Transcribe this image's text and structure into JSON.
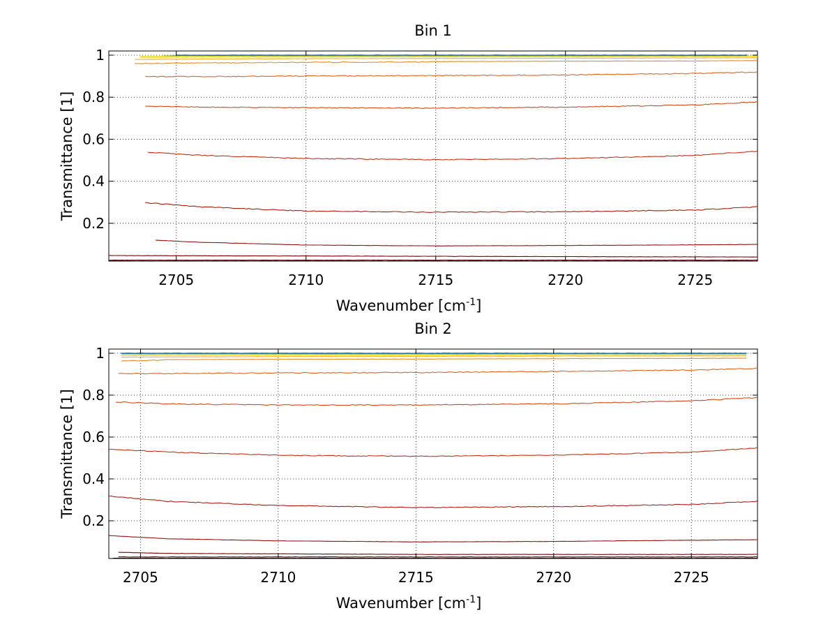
{
  "chart_data": [
    {
      "type": "line",
      "title": "Bin 1",
      "xlabel": "Wavenumber [cm",
      "xlabel_sup": "-1",
      "xlabel_end": "]",
      "ylabel": "Transmittance [1]",
      "xlim": [
        2702.4,
        2727.4
      ],
      "ylim": [
        0.02,
        1.02
      ],
      "xticks": [
        2705,
        2710,
        2715,
        2720,
        2725
      ],
      "xtick_labels": [
        "2705",
        "2710",
        "2715",
        "2720",
        "2725"
      ],
      "yticks": [
        0.2,
        0.4,
        0.6,
        0.8,
        1
      ],
      "ytick_labels": [
        "0.2",
        "0.4",
        "0.6",
        "0.8",
        "1"
      ],
      "grid": "dotted",
      "series": [
        {
          "color": "#000000",
          "x": [
            2702.4,
            2727.4
          ],
          "y": [
            0.021,
            0.021
          ]
        },
        {
          "color": "#5a0000",
          "x": [
            2702.4,
            2727.4
          ],
          "y": [
            0.025,
            0.025
          ]
        },
        {
          "color": "#800000",
          "x": [
            2702.4,
            2727.4
          ],
          "y": [
            0.047,
            0.04
          ]
        },
        {
          "color": "#9a1010",
          "x": [
            2704.2,
            2706,
            2710,
            2715,
            2720,
            2725,
            2727.4
          ],
          "y": [
            0.12,
            0.11,
            0.097,
            0.093,
            0.095,
            0.098,
            0.1
          ]
        },
        {
          "color": "#b01d10",
          "x": [
            2703.8,
            2706,
            2710,
            2715,
            2720,
            2725,
            2727.4
          ],
          "y": [
            0.3,
            0.28,
            0.26,
            0.255,
            0.257,
            0.265,
            0.28
          ]
        },
        {
          "color": "#c53015",
          "x": [
            2703.9,
            2706,
            2710,
            2715,
            2720,
            2725,
            2727.4
          ],
          "y": [
            0.54,
            0.525,
            0.51,
            0.505,
            0.51,
            0.525,
            0.545
          ]
        },
        {
          "color": "#d54a1a",
          "x": [
            2703.8,
            2706,
            2710,
            2715,
            2720,
            2725,
            2727.4
          ],
          "y": [
            0.76,
            0.755,
            0.752,
            0.75,
            0.755,
            0.765,
            0.78
          ]
        },
        {
          "color": "#e0641e",
          "x": [
            2703.8,
            2706,
            2710,
            2715,
            2720,
            2725,
            2727.4
          ],
          "y": [
            0.9,
            0.9,
            0.903,
            0.905,
            0.908,
            0.915,
            0.922
          ]
        },
        {
          "color": "#e88a25",
          "x": [
            2703.4,
            2706,
            2710,
            2715,
            2720,
            2725,
            2727.4
          ],
          "y": [
            0.962,
            0.965,
            0.968,
            0.97,
            0.972,
            0.973,
            0.975
          ]
        },
        {
          "color": "#f0b030",
          "x": [
            2703.4,
            2706,
            2710,
            2715,
            2720,
            2725,
            2727.4
          ],
          "y": [
            0.98,
            0.982,
            0.984,
            0.985,
            0.986,
            0.987,
            0.988
          ]
        },
        {
          "color": "#f5d020",
          "x": [
            2703.6,
            2710,
            2720,
            2727.4
          ],
          "y": [
            0.99,
            0.992,
            0.993,
            0.994
          ]
        },
        {
          "color": "#e6e020",
          "x": [
            2703.6,
            2710,
            2720,
            2727.4
          ],
          "y": [
            0.995,
            0.996,
            0.996,
            0.997
          ]
        },
        {
          "color": "#a8c83c",
          "x": [
            2704.5,
            2727
          ],
          "y": [
            0.998,
            0.998
          ]
        },
        {
          "color": "#4ab98c",
          "x": [
            2704.8,
            2727
          ],
          "y": [
            0.999,
            0.999
          ]
        },
        {
          "color": "#10a0c8",
          "x": [
            2705,
            2727
          ],
          "y": [
            1.0,
            1.0
          ]
        },
        {
          "color": "#2050a0",
          "x": [
            2705,
            2727
          ],
          "y": [
            1.001,
            1.001
          ]
        }
      ]
    },
    {
      "type": "line",
      "title": "Bin 2",
      "xlabel": "Wavenumber [cm",
      "xlabel_sup": "-1",
      "xlabel_end": "]",
      "ylabel": "Transmittance [1]",
      "xlim": [
        2703.85,
        2727.4
      ],
      "ylim": [
        0.02,
        1.02
      ],
      "xticks": [
        2705,
        2710,
        2715,
        2720,
        2725
      ],
      "xtick_labels": [
        "2705",
        "2710",
        "2715",
        "2720",
        "2725"
      ],
      "yticks": [
        0.2,
        0.4,
        0.6,
        0.8,
        1
      ],
      "ytick_labels": [
        "0.2",
        "0.4",
        "0.6",
        "0.8",
        "1"
      ],
      "grid": "dotted",
      "series": [
        {
          "color": "#000000",
          "x": [
            2704,
            2727.4
          ],
          "y": [
            0.022,
            0.022
          ]
        },
        {
          "color": "#5a0000",
          "x": [
            2704.2,
            2727.4
          ],
          "y": [
            0.028,
            0.028
          ]
        },
        {
          "color": "#800000",
          "x": [
            2704.2,
            2706,
            2715,
            2727.4
          ],
          "y": [
            0.05,
            0.045,
            0.04,
            0.04
          ]
        },
        {
          "color": "#9a1010",
          "x": [
            2703.85,
            2706,
            2710,
            2715,
            2720,
            2725,
            2727.4
          ],
          "y": [
            0.13,
            0.115,
            0.105,
            0.1,
            0.102,
            0.108,
            0.11
          ]
        },
        {
          "color": "#b01d10",
          "x": [
            2703.85,
            2706,
            2710,
            2715,
            2720,
            2725,
            2727.4
          ],
          "y": [
            0.32,
            0.295,
            0.275,
            0.265,
            0.27,
            0.28,
            0.295
          ]
        },
        {
          "color": "#c53015",
          "x": [
            2703.85,
            2706,
            2710,
            2715,
            2720,
            2725,
            2727.4
          ],
          "y": [
            0.545,
            0.53,
            0.515,
            0.51,
            0.515,
            0.53,
            0.55
          ]
        },
        {
          "color": "#d54a1a",
          "x": [
            2704.1,
            2706,
            2710,
            2715,
            2720,
            2725,
            2727.4
          ],
          "y": [
            0.77,
            0.76,
            0.755,
            0.755,
            0.76,
            0.775,
            0.79
          ]
        },
        {
          "color": "#e0641e",
          "x": [
            2704.2,
            2706,
            2710,
            2715,
            2720,
            2725,
            2727.4
          ],
          "y": [
            0.905,
            0.905,
            0.908,
            0.91,
            0.915,
            0.922,
            0.93
          ]
        },
        {
          "color": "#e88a25",
          "x": [
            2704.3,
            2706,
            2710,
            2715,
            2720,
            2725,
            2727
          ],
          "y": [
            0.965,
            0.97,
            0.972,
            0.973,
            0.975,
            0.976,
            0.977
          ]
        },
        {
          "color": "#f0b030",
          "x": [
            2704.3,
            2710,
            2720,
            2727
          ],
          "y": [
            0.982,
            0.985,
            0.987,
            0.988
          ]
        },
        {
          "color": "#f5d020",
          "x": [
            2704.3,
            2710,
            2720,
            2727
          ],
          "y": [
            0.99,
            0.992,
            0.993,
            0.994
          ]
        },
        {
          "color": "#e6e020",
          "x": [
            2704.3,
            2710,
            2720,
            2727
          ],
          "y": [
            0.995,
            0.996,
            0.996,
            0.997
          ]
        },
        {
          "color": "#a8c83c",
          "x": [
            2704.3,
            2727
          ],
          "y": [
            0.998,
            0.998
          ]
        },
        {
          "color": "#4ab98c",
          "x": [
            2704.3,
            2727
          ],
          "y": [
            0.999,
            0.999
          ]
        },
        {
          "color": "#10a0c8",
          "x": [
            2704.3,
            2727
          ],
          "y": [
            1.0,
            1.0
          ]
        },
        {
          "color": "#2050a0",
          "x": [
            2704.3,
            2727
          ],
          "y": [
            1.001,
            1.001
          ]
        }
      ]
    }
  ]
}
